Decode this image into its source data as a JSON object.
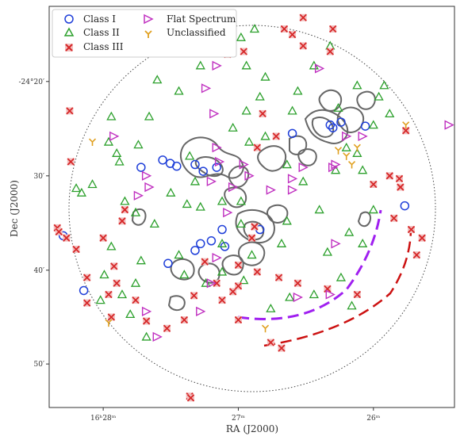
{
  "chart_data": {
    "type": "scatter",
    "xlabel": "RA (J2000)",
    "ylabel": "Dec (J2000)",
    "x_ticks": [
      {
        "value": 247.0,
        "label": "16ʰ28ᵐ"
      },
      {
        "value": 246.75,
        "label": "27ᵐ"
      },
      {
        "value": 246.5,
        "label": "26ᵐ"
      }
    ],
    "y_ticks": [
      {
        "value": -24.333,
        "label": "-24°20′"
      },
      {
        "value": -24.5,
        "label": "30′"
      },
      {
        "value": -24.667,
        "label": "40′"
      },
      {
        "value": -24.833,
        "label": "50′"
      }
    ],
    "xlim": [
      247.1,
      246.35
    ],
    "ylim": [
      -24.91,
      -24.2
    ],
    "legend_position": "top-left",
    "colors": {
      "Class I": "#1f3fd9",
      "Class II": "#2ca02c",
      "Class III": "#d62728",
      "Flat Spectrum": "#c030c0",
      "Unclassified": "#e0a020",
      "contour": "#555555",
      "arc_purple": "#a020f0",
      "arc_red": "#cc1111"
    },
    "series": [
      {
        "name": "Class I",
        "marker": "circle",
        "points": [
          [
            246.93,
            -24.485
          ],
          [
            246.89,
            -24.472
          ],
          [
            246.876,
            -24.478
          ],
          [
            246.864,
            -24.483
          ],
          [
            246.83,
            -24.48
          ],
          [
            246.815,
            -24.492
          ],
          [
            246.79,
            -24.485
          ],
          [
            246.78,
            -24.595
          ],
          [
            246.775,
            -24.625
          ],
          [
            246.8,
            -24.615
          ],
          [
            246.82,
            -24.62
          ],
          [
            246.83,
            -24.632
          ],
          [
            246.88,
            -24.655
          ],
          [
            246.71,
            -24.595
          ],
          [
            246.65,
            -24.425
          ],
          [
            246.56,
            -24.405
          ],
          [
            246.515,
            -24.412
          ],
          [
            246.575,
            -24.415
          ],
          [
            246.58,
            -24.41
          ],
          [
            246.442,
            -24.553
          ],
          [
            247.074,
            -24.606
          ],
          [
            247.036,
            -24.703
          ]
        ]
      },
      {
        "name": "Class II",
        "marker": "triangle",
        "points": [
          [
            246.9,
            -24.33
          ],
          [
            246.915,
            -24.395
          ],
          [
            246.86,
            -24.35
          ],
          [
            246.84,
            -24.465
          ],
          [
            246.985,
            -24.395
          ],
          [
            246.99,
            -24.44
          ],
          [
            246.935,
            -24.445
          ],
          [
            246.97,
            -24.475
          ],
          [
            246.875,
            -24.53
          ],
          [
            246.83,
            -24.51
          ],
          [
            246.76,
            -24.415
          ],
          [
            246.73,
            -24.44
          ],
          [
            246.745,
            -24.585
          ],
          [
            246.78,
            -24.62
          ],
          [
            246.845,
            -24.55
          ],
          [
            246.905,
            -24.585
          ],
          [
            246.93,
            -24.65
          ],
          [
            246.94,
            -24.565
          ],
          [
            246.96,
            -24.545
          ],
          [
            246.985,
            -24.625
          ],
          [
            246.998,
            -24.675
          ],
          [
            247.005,
            -24.72
          ],
          [
            246.965,
            -24.71
          ],
          [
            246.95,
            -24.745
          ],
          [
            246.94,
            -24.69
          ],
          [
            246.86,
            -24.64
          ],
          [
            246.85,
            -24.675
          ],
          [
            246.81,
            -24.69
          ],
          [
            246.78,
            -24.67
          ],
          [
            246.74,
            -24.685
          ],
          [
            246.725,
            -24.64
          ],
          [
            246.67,
            -24.62
          ],
          [
            246.66,
            -24.58
          ],
          [
            246.63,
            -24.51
          ],
          [
            246.6,
            -24.56
          ],
          [
            246.585,
            -24.635
          ],
          [
            246.61,
            -24.71
          ],
          [
            246.655,
            -24.715
          ],
          [
            246.69,
            -24.735
          ],
          [
            246.56,
            -24.68
          ],
          [
            246.54,
            -24.73
          ],
          [
            246.52,
            -24.62
          ],
          [
            246.5,
            -24.56
          ],
          [
            246.52,
            -24.49
          ],
          [
            246.53,
            -24.46
          ],
          [
            246.5,
            -24.41
          ],
          [
            246.49,
            -24.36
          ],
          [
            246.47,
            -24.39
          ],
          [
            246.48,
            -24.34
          ],
          [
            246.55,
            -24.45
          ],
          [
            246.58,
            -24.27
          ],
          [
            246.61,
            -24.305
          ],
          [
            246.64,
            -24.35
          ],
          [
            246.65,
            -24.385
          ],
          [
            246.7,
            -24.325
          ],
          [
            246.71,
            -24.36
          ],
          [
            246.72,
            -24.24
          ],
          [
            246.745,
            -24.255
          ],
          [
            246.735,
            -24.305
          ],
          [
            246.8,
            -24.265
          ],
          [
            246.82,
            -24.305
          ],
          [
            246.82,
            -24.24
          ],
          [
            246.565,
            -24.38
          ],
          [
            246.53,
            -24.34
          ],
          [
            246.7,
            -24.43
          ],
          [
            246.735,
            -24.385
          ],
          [
            247.05,
            -24.522
          ],
          [
            247.04,
            -24.53
          ],
          [
            246.975,
            -24.46
          ],
          [
            247.02,
            -24.515
          ],
          [
            246.82,
            -24.555
          ],
          [
            246.78,
            -24.545
          ],
          [
            246.745,
            -24.545
          ],
          [
            246.66,
            -24.48
          ],
          [
            246.57,
            -24.49
          ],
          [
            246.545,
            -24.6
          ],
          [
            246.92,
            -24.785
          ]
        ]
      },
      {
        "name": "Class III",
        "marker": "x",
        "points": [
          [
            247.062,
            -24.385
          ],
          [
            247.06,
            -24.475
          ],
          [
            247.085,
            -24.592
          ],
          [
            247.082,
            -24.599
          ],
          [
            247.068,
            -24.61
          ],
          [
            247.05,
            -24.63
          ],
          [
            247.0,
            -24.61
          ],
          [
            246.98,
            -24.66
          ],
          [
            246.99,
            -24.71
          ],
          [
            246.985,
            -24.75
          ],
          [
            247.03,
            -24.725
          ],
          [
            246.94,
            -24.72
          ],
          [
            246.92,
            -24.757
          ],
          [
            246.882,
            -24.77
          ],
          [
            246.85,
            -24.755
          ],
          [
            246.832,
            -24.712
          ],
          [
            246.812,
            -24.652
          ],
          [
            246.79,
            -24.69
          ],
          [
            246.76,
            -24.705
          ],
          [
            246.715,
            -24.67
          ],
          [
            246.75,
            -24.695
          ],
          [
            246.675,
            -24.68
          ],
          [
            246.64,
            -24.69
          ],
          [
            246.585,
            -24.7
          ],
          [
            246.53,
            -24.71
          ],
          [
            246.462,
            -24.575
          ],
          [
            246.45,
            -24.52
          ],
          [
            246.452,
            -24.505
          ],
          [
            246.43,
            -24.595
          ],
          [
            246.42,
            -24.64
          ],
          [
            246.41,
            -24.61
          ],
          [
            246.44,
            -24.42
          ],
          [
            246.47,
            -24.5
          ],
          [
            246.5,
            -24.515
          ],
          [
            246.58,
            -24.28
          ],
          [
            246.63,
            -24.27
          ],
          [
            246.65,
            -24.25
          ],
          [
            246.74,
            -24.28
          ],
          [
            246.77,
            -24.285
          ],
          [
            246.78,
            -24.22
          ],
          [
            246.63,
            -24.22
          ],
          [
            246.665,
            -24.24
          ],
          [
            246.575,
            -24.24
          ],
          [
            246.67,
            -24.805
          ],
          [
            246.84,
            -24.89
          ],
          [
            246.838,
            -24.893
          ],
          [
            246.96,
            -24.56
          ],
          [
            246.965,
            -24.58
          ],
          [
            246.975,
            -24.69
          ],
          [
            247.03,
            -24.68
          ],
          [
            246.715,
            -24.45
          ],
          [
            246.68,
            -24.43
          ],
          [
            246.705,
            -24.39
          ],
          [
            246.72,
            -24.59
          ],
          [
            246.75,
            -24.755
          ],
          [
            246.75,
            -24.658
          ],
          [
            246.725,
            -24.61
          ],
          [
            246.78,
            -24.72
          ],
          [
            246.69,
            -24.795
          ]
        ]
      },
      {
        "name": "Flat Spectrum",
        "marker": "triangle-right",
        "points": [
          [
            246.79,
            -24.305
          ],
          [
            246.81,
            -24.345
          ],
          [
            246.795,
            -24.39
          ],
          [
            246.79,
            -24.45
          ],
          [
            246.785,
            -24.475
          ],
          [
            246.8,
            -24.51
          ],
          [
            246.76,
            -24.52
          ],
          [
            246.74,
            -24.48
          ],
          [
            246.73,
            -24.5
          ],
          [
            246.77,
            -24.565
          ],
          [
            246.69,
            -24.525
          ],
          [
            246.65,
            -24.505
          ],
          [
            246.65,
            -24.525
          ],
          [
            246.63,
            -24.485
          ],
          [
            246.575,
            -24.485
          ],
          [
            246.57,
            -24.48
          ],
          [
            246.55,
            -24.43
          ],
          [
            246.52,
            -24.43
          ],
          [
            246.6,
            -24.31
          ],
          [
            246.79,
            -24.645
          ],
          [
            246.8,
            -24.69
          ],
          [
            246.82,
            -24.74
          ],
          [
            246.92,
            -24.74
          ],
          [
            246.9,
            -24.785
          ],
          [
            246.57,
            -24.62
          ],
          [
            246.92,
            -24.5
          ],
          [
            246.915,
            -24.52
          ],
          [
            246.935,
            -24.535
          ],
          [
            246.98,
            -24.43
          ],
          [
            246.36,
            -24.41
          ],
          [
            246.58,
            -24.71
          ],
          [
            246.64,
            -24.715
          ]
        ]
      },
      {
        "name": "Unclassified",
        "marker": "tri-down",
        "points": [
          [
            247.02,
            -24.44
          ],
          [
            246.44,
            -24.41
          ],
          [
            246.565,
            -24.455
          ],
          [
            246.55,
            -24.465
          ],
          [
            246.99,
            -24.76
          ],
          [
            246.7,
            -24.77
          ],
          [
            246.53,
            -24.45
          ],
          [
            246.54,
            -24.48
          ]
        ]
      }
    ]
  },
  "legend": {
    "items": [
      {
        "label": "Class I"
      },
      {
        "label": "Class II"
      },
      {
        "label": "Class III"
      },
      {
        "label": "Flat Spectrum"
      },
      {
        "label": "Unclassified"
      }
    ]
  }
}
